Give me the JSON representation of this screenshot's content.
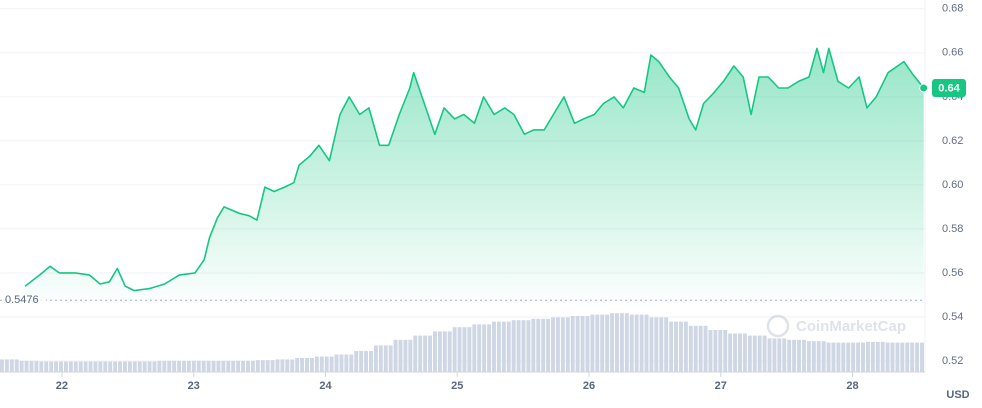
{
  "chart_data": {
    "type": "line",
    "currency": "USD",
    "watermark": "CoinMarketCap",
    "color": "#16c784",
    "grid": true,
    "x": [
      21.72,
      21.83,
      21.91,
      21.98,
      22.1,
      22.21,
      22.29,
      22.36,
      22.42,
      22.48,
      22.55,
      22.67,
      22.78,
      22.89,
      23.01,
      23.08,
      23.12,
      23.18,
      23.23,
      23.35,
      23.42,
      23.48,
      23.54,
      23.61,
      23.69,
      23.76,
      23.8,
      23.88,
      23.95,
      24.03,
      24.11,
      24.18,
      24.26,
      24.33,
      24.41,
      24.48,
      24.56,
      24.64,
      24.67,
      24.75,
      24.83,
      24.9,
      24.98,
      25.05,
      25.13,
      25.2,
      25.28,
      25.36,
      25.43,
      25.51,
      25.58,
      25.66,
      25.73,
      25.81,
      25.89,
      25.96,
      26.04,
      26.11,
      26.19,
      26.26,
      26.34,
      26.42,
      26.47,
      26.53,
      26.61,
      26.68,
      26.76,
      26.81,
      26.87,
      26.95,
      27.02,
      27.1,
      27.17,
      27.23,
      27.29,
      27.36,
      27.44,
      27.51,
      27.59,
      27.67,
      27.73,
      27.78,
      27.82,
      27.89,
      27.97,
      28.05,
      28.11,
      28.18,
      28.27,
      28.39,
      28.46,
      28.54
    ],
    "values": [
      0.554,
      0.559,
      0.563,
      0.56,
      0.56,
      0.559,
      0.555,
      0.556,
      0.562,
      0.554,
      0.552,
      0.553,
      0.555,
      0.559,
      0.56,
      0.566,
      0.576,
      0.585,
      0.59,
      0.587,
      0.586,
      0.584,
      0.599,
      0.597,
      0.599,
      0.601,
      0.609,
      0.613,
      0.618,
      0.611,
      0.632,
      0.64,
      0.632,
      0.635,
      0.618,
      0.618,
      0.632,
      0.644,
      0.651,
      0.637,
      0.623,
      0.635,
      0.63,
      0.632,
      0.628,
      0.64,
      0.632,
      0.635,
      0.632,
      0.623,
      0.625,
      0.625,
      0.632,
      0.64,
      0.628,
      0.63,
      0.632,
      0.637,
      0.64,
      0.635,
      0.644,
      0.642,
      0.659,
      0.656,
      0.649,
      0.644,
      0.63,
      0.625,
      0.637,
      0.642,
      0.647,
      0.654,
      0.649,
      0.632,
      0.649,
      0.649,
      0.644,
      0.644,
      0.647,
      0.649,
      0.662,
      0.651,
      0.662,
      0.647,
      0.644,
      0.649,
      0.635,
      0.64,
      0.651,
      0.656,
      0.65,
      0.644
    ],
    "xlim": [
      21.53,
      28.55
    ],
    "xticks": [
      22,
      23,
      24,
      25,
      26,
      27,
      28
    ],
    "ylim": [
      0.515,
      0.684
    ],
    "yticks": [
      0.52,
      0.54,
      0.56,
      0.58,
      {
        "value": 0.6,
        "label": "0.60"
      },
      0.62,
      0.64,
      0.66,
      0.68
    ],
    "reference": 0.5476,
    "last_price": {
      "value": 0.644,
      "label": "0.64"
    },
    "volume": {
      "ylim": [
        0,
        100
      ],
      "values": [
        18,
        16,
        15,
        15,
        15,
        15,
        15,
        15,
        16,
        16,
        16,
        16,
        16,
        17,
        18,
        20,
        22,
        25,
        30,
        38,
        46,
        52,
        58,
        64,
        68,
        72,
        74,
        76,
        78,
        80,
        82,
        84,
        82,
        78,
        72,
        66,
        60,
        55,
        52,
        48,
        46,
        44,
        42,
        42,
        43,
        42,
        42
      ]
    }
  }
}
